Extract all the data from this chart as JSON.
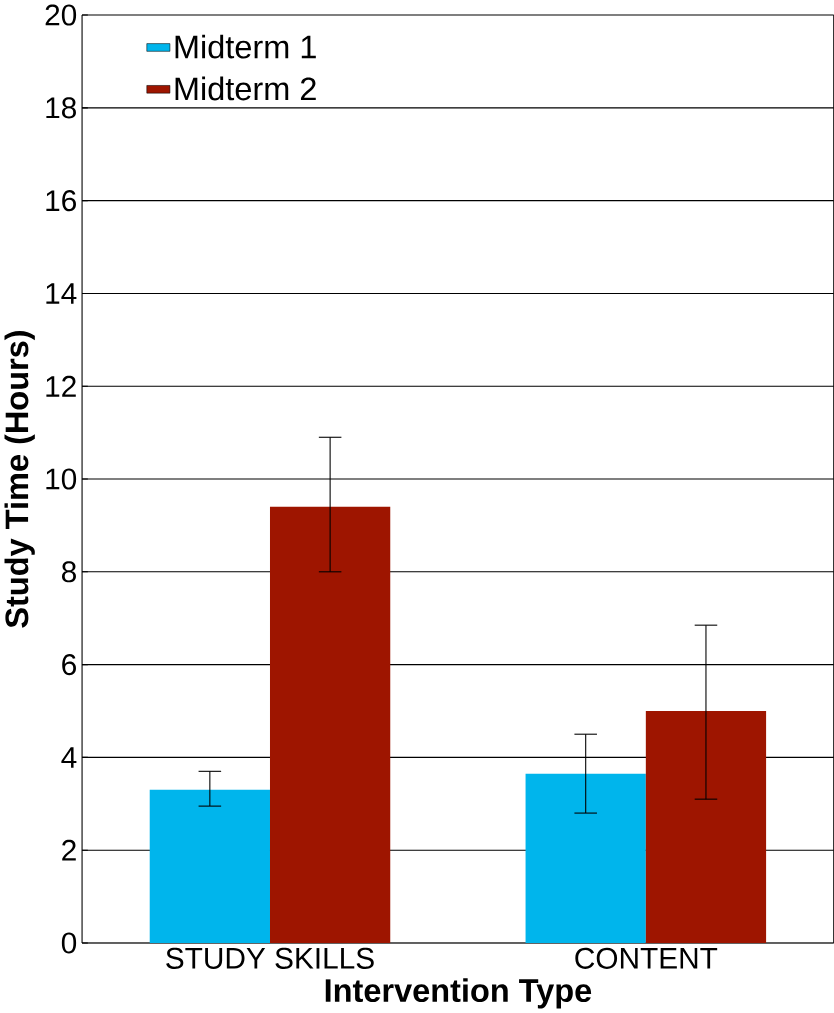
{
  "chart_data": {
    "type": "bar",
    "xlabel": "Intervention Type",
    "ylabel": "Study Time (Hours)",
    "categories": [
      "STUDY SKILLS",
      "CONTENT"
    ],
    "series": [
      {
        "name": "Midterm 1",
        "color": "#00b5ec",
        "values": [
          3.3,
          3.65
        ],
        "errors": [
          [
            2.95,
            3.7
          ],
          [
            2.8,
            4.5
          ]
        ]
      },
      {
        "name": "Midterm 2",
        "color": "#9e1500",
        "values": [
          9.4,
          5.0
        ],
        "errors": [
          [
            8.0,
            10.9
          ],
          [
            3.1,
            6.85
          ]
        ]
      }
    ],
    "ylim": [
      0,
      20
    ],
    "yticks": [
      0,
      2,
      4,
      6,
      8,
      10,
      12,
      14,
      16,
      18,
      20
    ],
    "grid": "y",
    "legend": "top left"
  }
}
